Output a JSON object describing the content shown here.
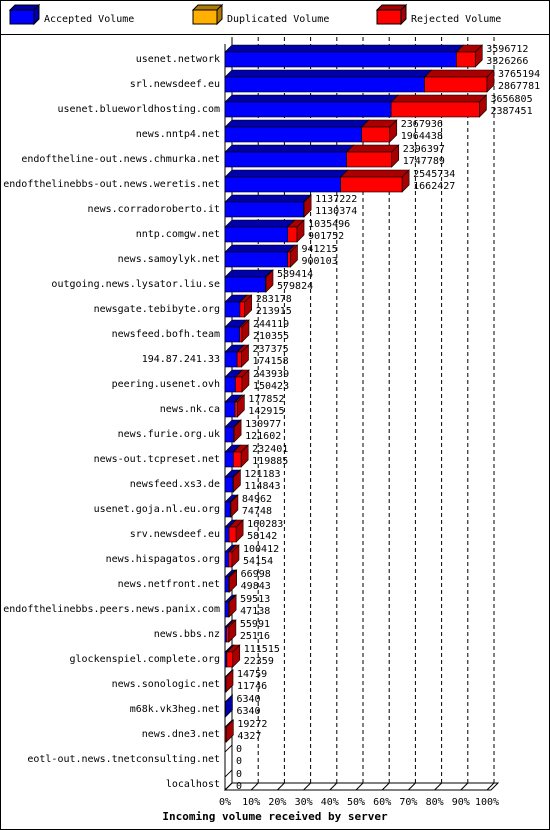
{
  "chart_data": {
    "type": "stacked-bar-3d",
    "title": "Incoming volume received by server",
    "categories": [
      "usenet.network",
      "srl.newsdeef.eu",
      "usenet.blueworldhosting.com",
      "news.nntp4.net",
      "endoftheline-out.news.chmurka.net",
      "endofthelinebbs-out.news.weretis.net",
      "news.corradoroberto.it",
      "nntp.comgw.net",
      "news.samoylyk.net",
      "outgoing.news.lysator.liu.se",
      "newsgate.tebibyte.org",
      "newsfeed.bofh.team",
      "194.87.241.33",
      "peering.usenet.ovh",
      "news.nk.ca",
      "news.furie.org.uk",
      "news-out.tcpreset.net",
      "newsfeed.xs3.de",
      "usenet.goja.nl.eu.org",
      "srv.newsdeef.eu",
      "news.hispagatos.org",
      "news.netfront.net",
      "endofthelinebbs.peers.news.panix.com",
      "news.bbs.nz",
      "glockenspiel.complete.org",
      "news.sonologic.net",
      "m68k.vk3heg.net",
      "news.dne3.net",
      "eotl-out.news.tnetconsulting.net",
      "localhost"
    ],
    "totals": [
      3596712,
      3765194,
      3656805,
      2367936,
      2396397,
      2545734,
      1137222,
      1035496,
      941215,
      589414,
      283178,
      244119,
      237375,
      243939,
      177852,
      130977,
      232401,
      121183,
      84962,
      160283,
      100412,
      66998,
      59513,
      55991,
      111515,
      14759,
      6340,
      19272,
      0,
      0
    ],
    "series": [
      {
        "name": "Accepted Volume",
        "color": "#0000ff",
        "top": "#0000a8",
        "values": [
          3326266,
          2867781,
          2387451,
          1964438,
          1747789,
          1662427,
          1130374,
          901752,
          900103,
          579824,
          213915,
          210355,
          174158,
          150423,
          142915,
          121602,
          119885,
          114843,
          74748,
          58142,
          54154,
          49843,
          47138,
          25116,
          22359,
          11746,
          6340,
          4327,
          0,
          0
        ]
      },
      {
        "name": "Duplicated Volume",
        "color": "#ffb000",
        "top": "#b07a00",
        "values": [
          0,
          0,
          0,
          0,
          0,
          0,
          0,
          0,
          0,
          0,
          0,
          0,
          0,
          0,
          0,
          0,
          0,
          0,
          0,
          0,
          0,
          0,
          0,
          0,
          5000,
          0,
          0,
          0,
          0,
          0
        ]
      },
      {
        "name": "Rejected Volume",
        "color": "#ff0000",
        "top": "#a80000",
        "values": [
          270446,
          897413,
          1269354,
          403498,
          648608,
          883307,
          6848,
          133744,
          41112,
          9590,
          69263,
          33764,
          63217,
          93516,
          34937,
          9375,
          112516,
          6340,
          10214,
          102141,
          46258,
          17155,
          12375,
          30875,
          84156,
          3013,
          0,
          14945,
          0,
          0
        ]
      }
    ],
    "xlim": [
      0,
      3765194
    ],
    "xticks": [
      {
        "value": 0,
        "label": "0%"
      },
      {
        "value": 376519.4,
        "label": "10%"
      },
      {
        "value": 753038.8,
        "label": "20%"
      },
      {
        "value": 1129558.2,
        "label": "30%"
      },
      {
        "value": 1506077.6,
        "label": "40%"
      },
      {
        "value": 1882597,
        "label": "50%"
      },
      {
        "value": 2259116.4,
        "label": "60%"
      },
      {
        "value": 2635635.8,
        "label": "70%"
      },
      {
        "value": 3012155.2,
        "label": "80%"
      },
      {
        "value": 3388674.6,
        "label": "90%"
      },
      {
        "value": 3765194,
        "label": "100%"
      }
    ],
    "grid": true
  }
}
